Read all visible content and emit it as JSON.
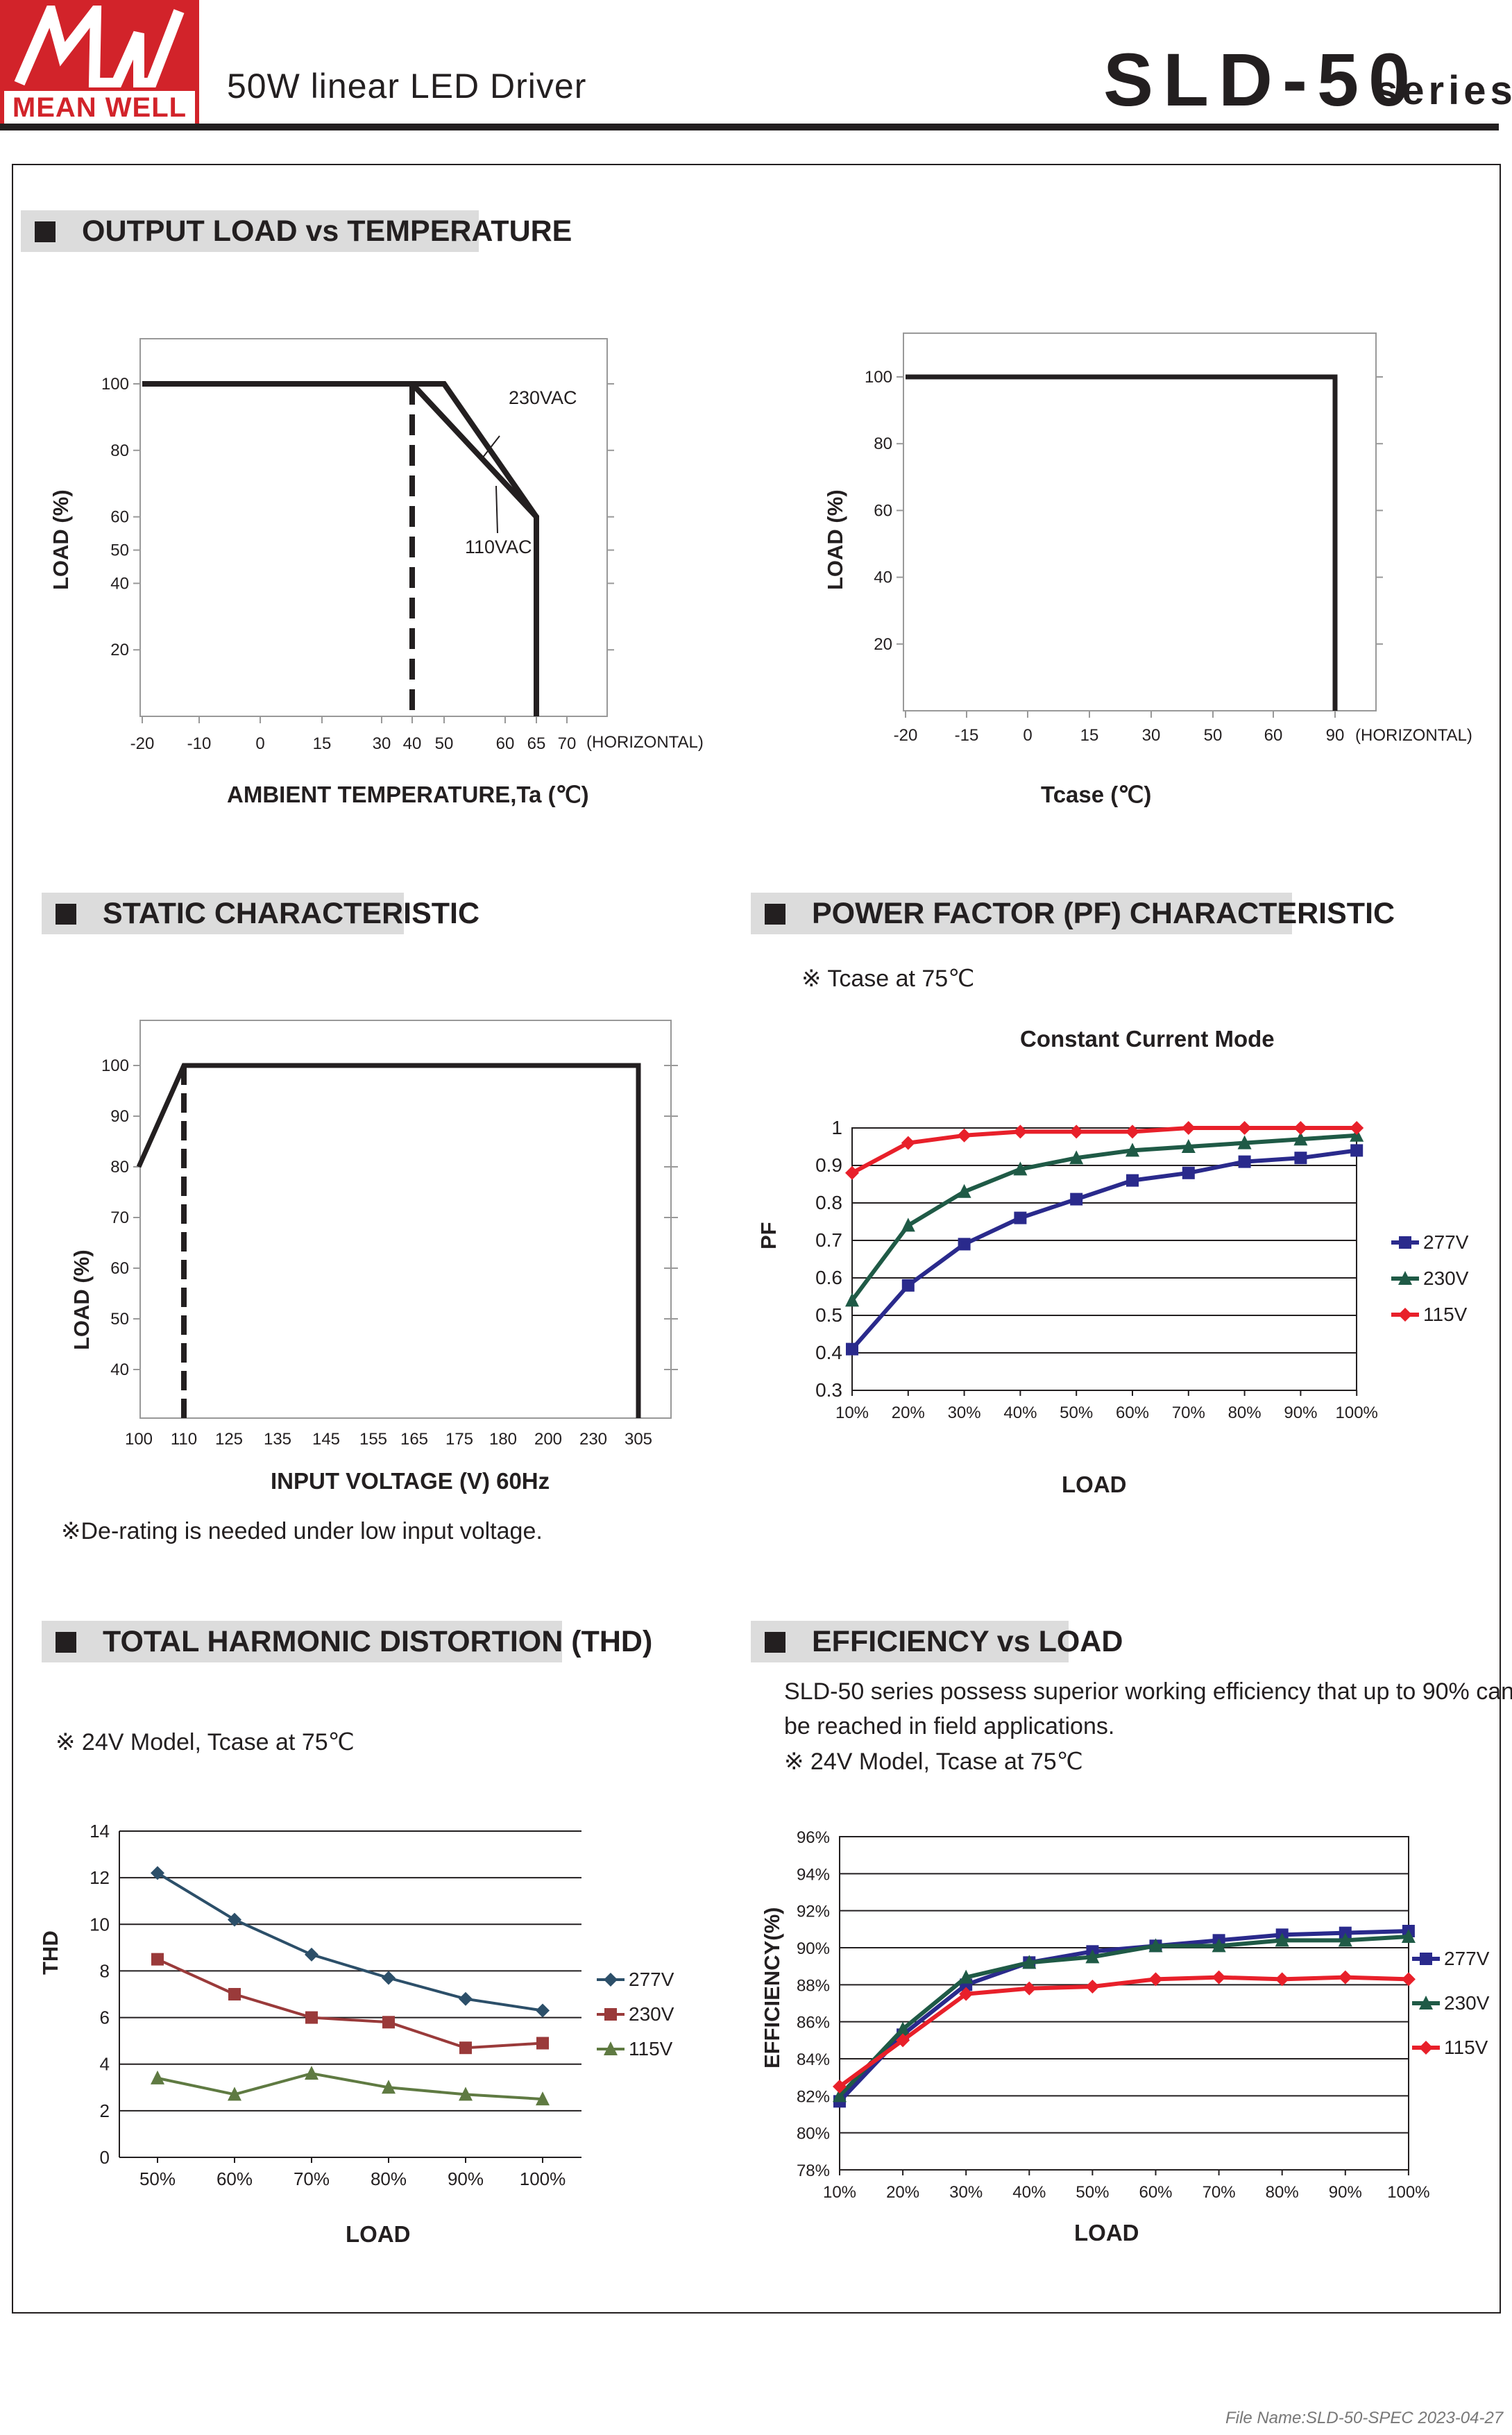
{
  "brand": {
    "logo_text": "MEAN WELL",
    "color": "#d2232a"
  },
  "header": {
    "subtitle": "50W linear LED Driver",
    "model": "SLD-50",
    "series": "series"
  },
  "sections": {
    "output_load": "OUTPUT LOAD vs TEMPERATURE",
    "static": "STATIC CHARACTERISTIC",
    "pf": "POWER FACTOR (PF) CHARACTERISTIC",
    "thd": "TOTAL HARMONIC DISTORTION (THD)",
    "eff": "EFFICIENCY vs LOAD"
  },
  "notes": {
    "pf_tcase": "※ Tcase at 75℃",
    "derating": "※De-rating is needed under low input voltage.",
    "thd_model": "※ 24V Model, Tcase at 75℃",
    "eff_desc_1": "SLD-50 series possess superior working efficiency that up to 90% can",
    "eff_desc_2": "be reached in field applications.",
    "eff_model": "※ 24V Model, Tcase at 75℃"
  },
  "axis_titles": {
    "derate_x": "AMBIENT TEMPERATURE,Ta (℃)",
    "derate_y": "LOAD (%)",
    "tcase_x": "Tcase (℃)",
    "tcase_y": "LOAD (%)",
    "static_x": "INPUT VOLTAGE (V) 60Hz",
    "static_y": "LOAD (%)",
    "pf_title": "Constant Current Mode",
    "pf_x": "LOAD",
    "pf_y": "PF",
    "thd_x": "LOAD",
    "thd_y": "THD",
    "eff_x": "LOAD",
    "eff_y": "EFFICIENCY(%)"
  },
  "footer": {
    "file": "File Name:SLD-50-SPEC   2023-04-27"
  },
  "chart_data": [
    {
      "id": "derate",
      "type": "line",
      "x_ticks": [
        "-20",
        "-10",
        "0",
        "15",
        "30",
        "40",
        "50",
        "60",
        "65",
        "70"
      ],
      "x_extra": "(HORIZONTAL)",
      "y_ticks": [
        20,
        40,
        50,
        60,
        80,
        100
      ],
      "series": [
        {
          "name": "230VAC",
          "points": [
            [
              -20,
              100
            ],
            [
              50,
              100
            ],
            [
              65,
              60
            ],
            [
              65,
              0
            ]
          ]
        },
        {
          "name": "110VAC",
          "points": [
            [
              -20,
              100
            ],
            [
              40,
              100
            ],
            [
              65,
              60
            ],
            [
              65,
              0
            ]
          ]
        }
      ],
      "dashed_x": 40
    },
    {
      "id": "tcase",
      "type": "line",
      "x_ticks": [
        "-20",
        "-15",
        "0",
        "15",
        "30",
        "50",
        "60",
        "90"
      ],
      "x_extra": "(HORIZONTAL)",
      "y_ticks": [
        20,
        40,
        60,
        80,
        100
      ],
      "series": [
        {
          "points": [
            [
              -20,
              100
            ],
            [
              90,
              100
            ],
            [
              90,
              0
            ]
          ]
        }
      ]
    },
    {
      "id": "static",
      "type": "line",
      "x_ticks": [
        "100",
        "110",
        "125",
        "135",
        "145",
        "155",
        "165",
        "175",
        "180",
        "200",
        "230",
        "305"
      ],
      "y_ticks": [
        40,
        50,
        60,
        70,
        80,
        90,
        100
      ],
      "series": [
        {
          "points": [
            [
              100,
              80
            ],
            [
              110,
              100
            ],
            [
              305,
              100
            ],
            [
              305,
              0
            ]
          ]
        }
      ],
      "dashed_x": 110
    },
    {
      "id": "pf",
      "type": "line",
      "categories": [
        "10%",
        "20%",
        "30%",
        "40%",
        "50%",
        "60%",
        "70%",
        "80%",
        "90%",
        "100%"
      ],
      "ylim": [
        0.3,
        1
      ],
      "y_ticks": [
        "0.3",
        "0.4",
        "0.5",
        "0.6",
        "0.7",
        "0.8",
        "0.9",
        "1"
      ],
      "series": [
        {
          "name": "277V",
          "color": "#2a2a8c",
          "marker": "square",
          "values": [
            0.41,
            0.58,
            0.69,
            0.76,
            0.81,
            0.86,
            0.88,
            0.91,
            0.92,
            0.94
          ]
        },
        {
          "name": "230V",
          "color": "#1f5a46",
          "marker": "triangle",
          "values": [
            0.54,
            0.74,
            0.83,
            0.89,
            0.92,
            0.94,
            0.95,
            0.96,
            0.97,
            0.98
          ]
        },
        {
          "name": "115V",
          "color": "#e8202a",
          "marker": "diamond",
          "values": [
            0.88,
            0.96,
            0.98,
            0.99,
            0.99,
            0.99,
            1.0,
            1.0,
            1.0,
            1.0
          ]
        }
      ]
    },
    {
      "id": "thd",
      "type": "line",
      "categories": [
        "50%",
        "60%",
        "70%",
        "80%",
        "90%",
        "100%"
      ],
      "ylim": [
        0,
        14
      ],
      "y_ticks": [
        "0",
        "2",
        "4",
        "6",
        "8",
        "10",
        "12",
        "14"
      ],
      "series": [
        {
          "name": "277V",
          "color": "#2c4f69",
          "marker": "diamond",
          "values": [
            12.2,
            10.2,
            8.7,
            7.7,
            6.8,
            6.3
          ]
        },
        {
          "name": "230V",
          "color": "#9a3a3a",
          "marker": "square",
          "values": [
            8.5,
            7.0,
            6.0,
            5.8,
            4.7,
            4.9
          ]
        },
        {
          "name": "115V",
          "color": "#5f7a42",
          "marker": "triangle",
          "values": [
            3.4,
            2.7,
            3.6,
            3.0,
            2.7,
            2.5
          ]
        }
      ]
    },
    {
      "id": "eff",
      "type": "line",
      "categories": [
        "10%",
        "20%",
        "30%",
        "40%",
        "50%",
        "60%",
        "70%",
        "80%",
        "90%",
        "100%"
      ],
      "ylim": [
        78,
        96
      ],
      "y_ticks": [
        "78%",
        "80%",
        "82%",
        "84%",
        "86%",
        "88%",
        "90%",
        "92%",
        "94%",
        "96%"
      ],
      "series": [
        {
          "name": "277V",
          "color": "#2a2a8c",
          "marker": "square",
          "values": [
            81.7,
            85.3,
            88.0,
            89.2,
            89.8,
            90.1,
            90.4,
            90.7,
            90.8,
            90.9
          ]
        },
        {
          "name": "230V",
          "color": "#1f5a46",
          "marker": "triangle",
          "values": [
            82.0,
            85.6,
            88.4,
            89.2,
            89.5,
            90.1,
            90.1,
            90.4,
            90.4,
            90.6
          ]
        },
        {
          "name": "115V",
          "color": "#e8202a",
          "marker": "diamond",
          "values": [
            82.5,
            85.0,
            87.5,
            87.8,
            87.9,
            88.3,
            88.4,
            88.3,
            88.4,
            88.3
          ]
        }
      ]
    }
  ]
}
